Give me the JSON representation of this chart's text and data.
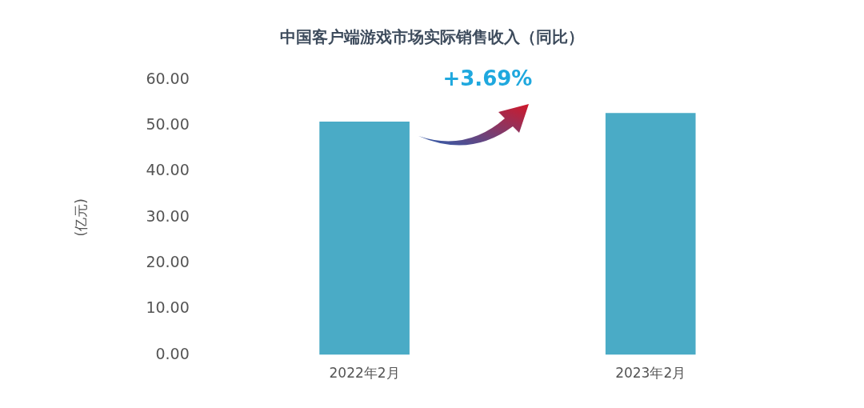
{
  "chart_data": {
    "type": "bar",
    "title": "中国客户端游戏市场实际销售收入（同比）",
    "ylabel": "(亿元)",
    "categories": [
      "2022年2月",
      "2023年2月"
    ],
    "values": [
      50.9,
      52.8
    ],
    "color": "#4aabc6",
    "ylim": [
      0,
      60
    ],
    "yticks": [
      {
        "value": 0,
        "label": "0.00"
      },
      {
        "value": 10,
        "label": "10.00"
      },
      {
        "value": 20,
        "label": "20.00"
      },
      {
        "value": 30,
        "label": "30.00"
      },
      {
        "value": 40,
        "label": "40.00"
      },
      {
        "value": 50,
        "label": "50.00"
      },
      {
        "value": 60,
        "label": "60.00"
      }
    ],
    "grid": false,
    "legend": false,
    "annotations": [
      "+3.69%"
    ]
  }
}
